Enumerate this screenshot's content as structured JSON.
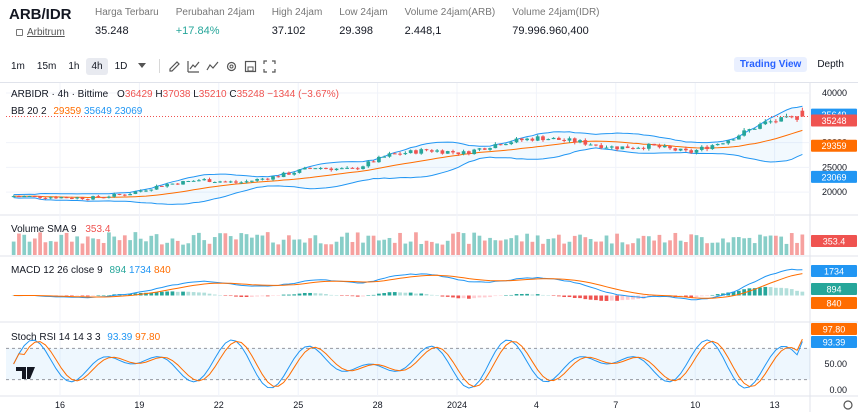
{
  "header": {
    "pair": "ARB/IDR",
    "subtitle": "Arbitrum",
    "stats": [
      {
        "label": "Harga Terbaru",
        "value": "35.248",
        "tone": "neutral"
      },
      {
        "label": "Perubahan 24jam",
        "value": "+17.84%",
        "tone": "up"
      },
      {
        "label": "High 24jam",
        "value": "37.102",
        "tone": "neutral"
      },
      {
        "label": "Low 24jam",
        "value": "29.398",
        "tone": "neutral"
      },
      {
        "label": "Volume 24jam(ARB)",
        "value": "2.448,1",
        "tone": "neutral"
      },
      {
        "label": "Volume 24jam(IDR)",
        "value": "79.996.960,400",
        "tone": "neutral"
      }
    ]
  },
  "toolbar": {
    "timeframes": [
      "1m",
      "15m",
      "1h",
      "4h",
      "1D"
    ],
    "active_timeframe": "4h",
    "icons": [
      "pencil-icon",
      "trend-line-icon",
      "indicators-icon",
      "settings-icon",
      "save-icon",
      "fullscreen-icon"
    ],
    "views": [
      "Trading View",
      "Depth"
    ]
  },
  "legend": {
    "symbol": "ARBIDR · 4h · Bittime",
    "o_label": "O",
    "o": "36429",
    "h_label": "H",
    "h": "37038",
    "l_label": "L",
    "l": "35210",
    "c_label": "C",
    "c": "35248",
    "change": "−1344 (−3.67%)",
    "bb_label": "BB 20 2",
    "bb_basis": "29359",
    "bb_upper": "35649",
    "bb_lower": "23069",
    "vol_label": "Volume SMA 9",
    "vol_value": "353.4",
    "macd_label": "MACD 12 26 close 9",
    "macd_hist": "894",
    "macd_line": "1734",
    "macd_signal": "840",
    "stoch_label": "Stoch RSI 14 14 3 3",
    "stoch_k": "93.39",
    "stoch_d": "97.80"
  },
  "price_axis": {
    "ticks": [
      "40000",
      "30000",
      "25000",
      "20000"
    ],
    "badges": [
      {
        "text": "35649",
        "color": "#2196f3"
      },
      {
        "text": "35248",
        "color": "#ef5350"
      },
      {
        "text": "29359",
        "color": "#ff6d00"
      },
      {
        "text": "23069",
        "color": "#2196f3"
      }
    ]
  },
  "vol_axis": {
    "badge": "353.4"
  },
  "macd_axis": {
    "badges": [
      {
        "text": "1734",
        "color": "#2196f3"
      },
      {
        "text": "894",
        "color": "#26a69a"
      },
      {
        "text": "840",
        "color": "#ff6d00"
      }
    ]
  },
  "stoch_axis": {
    "ticks": [
      "50.00",
      "0.00"
    ],
    "badges": [
      {
        "text": "97.80",
        "color": "#ff6d00"
      },
      {
        "text": "93.39",
        "color": "#2196f3"
      }
    ]
  },
  "time_axis": [
    "16",
    "19",
    "22",
    "25",
    "28",
    "2024",
    "4",
    "7",
    "10",
    "13"
  ],
  "colors": {
    "up": "#26a69a",
    "down": "#ef5350",
    "bb": "#2196f3",
    "basis": "#ff6d00",
    "macd": "#2196f3",
    "signal": "#ff6d00"
  },
  "chart_data": {
    "type": "candlestick",
    "title": "ARBIDR · 4h · Bittime",
    "ylim": [
      17000,
      40000
    ],
    "bollinger": {
      "period": 20,
      "mult": 2,
      "basis_last": 29359,
      "upper_last": 35649,
      "lower_last": 23069
    },
    "last_candle": {
      "open": 36429,
      "high": 37038,
      "low": 35210,
      "close": 35248
    },
    "key_closes": [
      19200,
      19000,
      18800,
      19600,
      21500,
      22500,
      21900,
      23200,
      25000,
      24500,
      27500,
      28500,
      27900,
      30000,
      31000,
      30200,
      29000,
      29300,
      28000,
      30500,
      34000,
      35248
    ],
    "volume_sma9_last": 353.4,
    "macd": {
      "fast": 12,
      "slow": 26,
      "signal": 9,
      "macd_last": 1734,
      "signal_last": 840,
      "hist_last": 894
    },
    "stoch_rsi": {
      "k_last": 93.39,
      "d_last": 97.8,
      "levels": [
        80,
        20
      ]
    }
  }
}
